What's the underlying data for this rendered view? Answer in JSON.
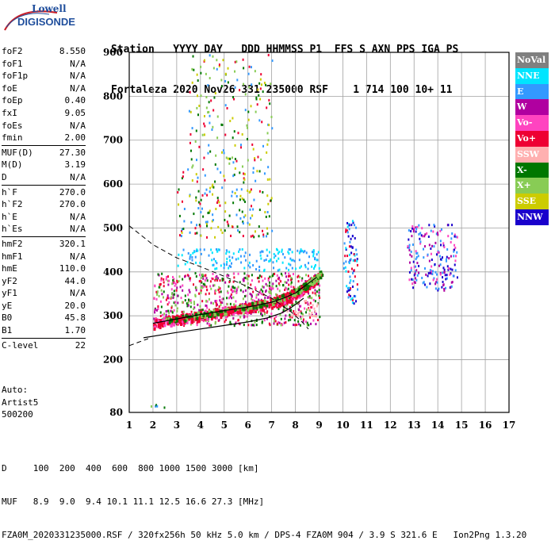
{
  "logo": {
    "line1": "Lowell",
    "line2": "DIGISONDE"
  },
  "header": {
    "line1": "Station   YYYY DAY   DDD HHMMSS P1  FFS S AXN PPS IGA PS",
    "line2": "Fortaleza 2020 Nov26 331 235000 RSF    1 714 100 10+ 11"
  },
  "params": [
    {
      "group": 1,
      "name": "foF2",
      "value": "8.550"
    },
    {
      "group": 1,
      "name": "foF1",
      "value": "N/A"
    },
    {
      "group": 1,
      "name": "foF1p",
      "value": "N/A"
    },
    {
      "group": 1,
      "name": "foE",
      "value": "N/A"
    },
    {
      "group": 1,
      "name": "foEp",
      "value": "0.40"
    },
    {
      "group": 1,
      "name": "fxI",
      "value": "9.05"
    },
    {
      "group": 1,
      "name": "foEs",
      "value": "N/A"
    },
    {
      "group": 1,
      "name": "fmin",
      "value": "2.00"
    },
    {
      "group": 2,
      "name": "MUF(D)",
      "value": "27.30"
    },
    {
      "group": 2,
      "name": "M(D)",
      "value": "3.19"
    },
    {
      "group": 2,
      "name": "D",
      "value": "N/A"
    },
    {
      "group": 3,
      "name": "h`F",
      "value": "270.0"
    },
    {
      "group": 3,
      "name": "h`F2",
      "value": "270.0"
    },
    {
      "group": 3,
      "name": "h`E",
      "value": "N/A"
    },
    {
      "group": 3,
      "name": "h`Es",
      "value": "N/A"
    },
    {
      "group": 4,
      "name": "hmF2",
      "value": "320.1"
    },
    {
      "group": 4,
      "name": "hmF1",
      "value": "N/A"
    },
    {
      "group": 4,
      "name": "hmE",
      "value": "110.0"
    },
    {
      "group": 4,
      "name": "yF2",
      "value": "44.0"
    },
    {
      "group": 4,
      "name": "yF1",
      "value": "N/A"
    },
    {
      "group": 4,
      "name": "yE",
      "value": "20.0"
    },
    {
      "group": 4,
      "name": "B0",
      "value": "45.8"
    },
    {
      "group": 4,
      "name": "B1",
      "value": "1.70"
    },
    {
      "group": 5,
      "name": "C-level",
      "value": "22"
    }
  ],
  "auto": {
    "line1": "Auto:",
    "line2": "Artist5",
    "line3": "500200"
  },
  "legend": [
    {
      "label": "NoVal",
      "color": "#808080"
    },
    {
      "label": "NNE",
      "color": "#00e5ff"
    },
    {
      "label": "E",
      "color": "#3399ff"
    },
    {
      "label": "W",
      "color": "#b000a0"
    },
    {
      "label": "Vo-",
      "color": "#ff44c0"
    },
    {
      "label": "Vo+",
      "color": "#ee0033"
    },
    {
      "label": "SSW",
      "color": "#ffb0b0"
    },
    {
      "label": "X-",
      "color": "#007700"
    },
    {
      "label": "X+",
      "color": "#88cc55"
    },
    {
      "label": "SSE",
      "color": "#cccc00"
    },
    {
      "label": "NNW",
      "color": "#1a00cc"
    }
  ],
  "footer": {
    "line1": "D     100  200  400  600  800 1000 1500 3000 [km]",
    "line2": "MUF   8.9  9.0  9.4 10.1 11.1 12.5 16.6 27.3 [MHz]",
    "line3": "FZA0M_2020331235000.RSF / 320fx256h 50 kHz 5.0 km / DPS-4 FZA0M 904 / 3.9 S 321.6 E   Ion2Png 1.3.20"
  },
  "chart_data": {
    "type": "scatter",
    "xlim": [
      1,
      17
    ],
    "ylim": [
      80,
      900
    ],
    "x_ticks": [
      1,
      2,
      3,
      4,
      5,
      6,
      7,
      8,
      9,
      10,
      11,
      12,
      13,
      14,
      15,
      16,
      17
    ],
    "y_ticks": [
      80,
      200,
      300,
      400,
      500,
      600,
      700,
      800,
      900
    ],
    "grid": true,
    "legend_position": "right",
    "profile_solid": [
      [
        1.6,
        250
      ],
      [
        3,
        262
      ],
      [
        4,
        270
      ],
      [
        5,
        278
      ],
      [
        6,
        286
      ],
      [
        6.8,
        295
      ],
      [
        7.4,
        306
      ],
      [
        7.8,
        318
      ],
      [
        8.1,
        330
      ],
      [
        8.35,
        340
      ]
    ],
    "profile_dashed": [
      [
        1.0,
        505
      ],
      [
        2,
        462
      ],
      [
        3,
        432
      ],
      [
        4,
        412
      ],
      [
        5,
        390
      ],
      [
        6,
        366
      ],
      [
        7,
        340
      ],
      [
        7.8,
        310
      ],
      [
        8.3,
        285
      ],
      [
        8.55,
        270
      ]
    ],
    "extension_dashed": [
      [
        1.0,
        232
      ],
      [
        1.4,
        240
      ],
      [
        1.8,
        248
      ]
    ],
    "trace_o": [
      [
        2.0,
        283
      ],
      [
        3,
        293
      ],
      [
        4,
        303
      ],
      [
        5,
        312
      ],
      [
        6,
        320
      ],
      [
        7,
        331
      ],
      [
        7.5,
        340
      ],
      [
        8,
        352
      ],
      [
        8.5,
        372
      ],
      [
        8.9,
        388
      ]
    ],
    "trace_x": [
      [
        2.5,
        290
      ],
      [
        4,
        305
      ],
      [
        5.5,
        318
      ],
      [
        7,
        335
      ],
      [
        8,
        358
      ],
      [
        8.7,
        380
      ],
      [
        9.1,
        400
      ]
    ],
    "clusters": [
      {
        "x": [
          2,
          9
        ],
        "y": [
          280,
          400
        ],
        "colors": [
          "Vo+",
          "Vo-",
          "W",
          "X-",
          "X+"
        ],
        "density": 1.0
      },
      {
        "x": [
          3,
          9
        ],
        "y": [
          405,
          455
        ],
        "colors": [
          "E",
          "NNE"
        ],
        "density": 0.6
      },
      {
        "x": [
          10,
          10.6
        ],
        "y": [
          330,
          520
        ],
        "colors": [
          "NNE",
          "E",
          "NNW",
          "Vo+"
        ],
        "density": 0.8
      },
      {
        "x": [
          12.7,
          14.8
        ],
        "y": [
          360,
          510
        ],
        "colors": [
          "NNW",
          "W",
          "Vo-",
          "E"
        ],
        "density": 0.7
      },
      {
        "x": [
          3,
          7
        ],
        "y": [
          480,
          640
        ],
        "colors": [
          "E",
          "Vo+",
          "X-",
          "SSE"
        ],
        "density": 0.3
      },
      {
        "x": [
          3.5,
          7
        ],
        "y": [
          640,
          900
        ],
        "colors": [
          "X-",
          "Vo+",
          "X+",
          "SSE",
          "E"
        ],
        "density": 0.2
      },
      {
        "x": [
          7.5,
          9
        ],
        "y": [
          300,
          340
        ],
        "colors": [
          "SSW"
        ],
        "density": 0.5
      },
      {
        "x": [
          1.8,
          2.5
        ],
        "y": [
          90,
          100
        ],
        "colors": [
          "X-",
          "E",
          "X+"
        ],
        "density": 0.8
      }
    ]
  }
}
